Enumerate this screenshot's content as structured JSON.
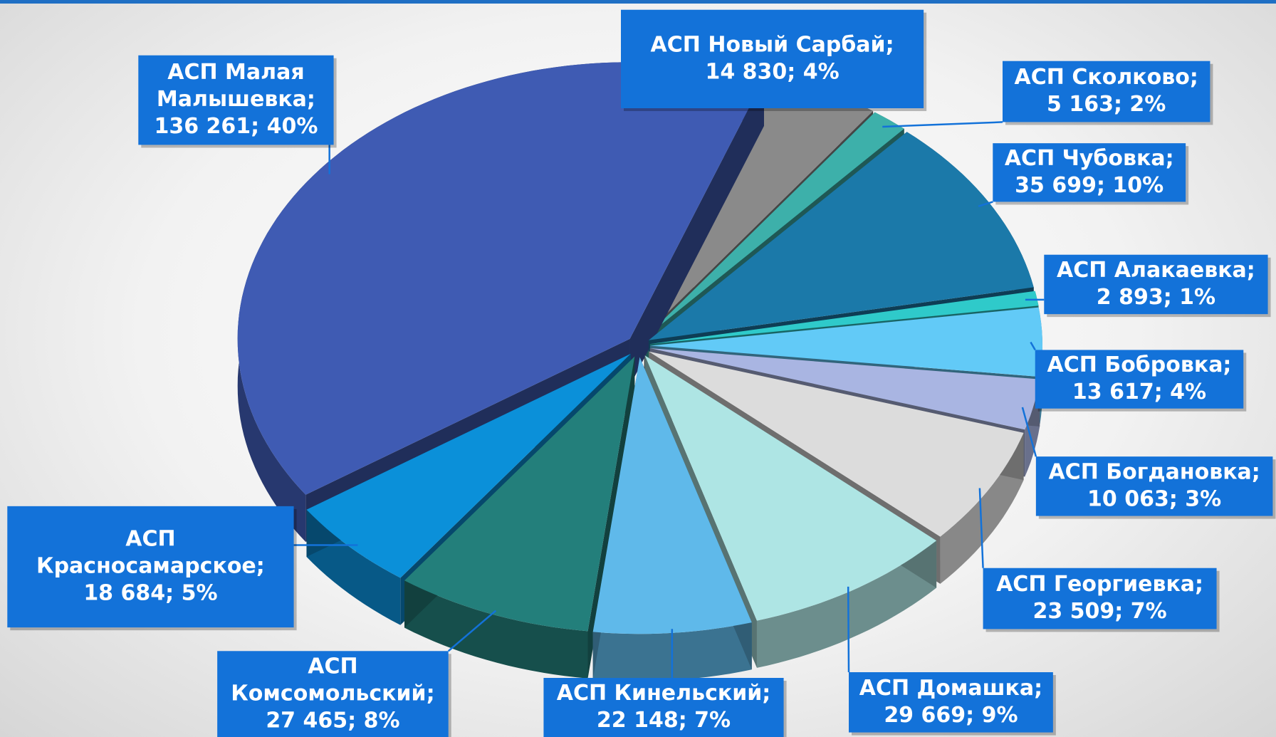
{
  "chart_data": {
    "type": "pie3d",
    "categories": [
      "АСП Новый Сарбай",
      "АСП Сколково",
      "АСП Чубовка",
      "АСП Алакаевка",
      "АСП Бобровка",
      "АСП Богдановка",
      "АСП Георгиевка",
      "АСП Домашка",
      "АСП Кинельский",
      "АСП Комсомольский",
      "АСП Красносамарское",
      "АСП Малая Малышевка"
    ],
    "values": [
      14830,
      5163,
      35699,
      2893,
      13617,
      10063,
      23509,
      29669,
      22148,
      27465,
      18684,
      136261
    ],
    "value_labels": [
      [
        "АСП Новый Сарбай;",
        "14 830; 4%"
      ],
      [
        "АСП Сколково;",
        "5 163; 2%"
      ],
      [
        "АСП Чубовка;",
        "35 699; 10%"
      ],
      [
        "АСП Алакаевка;",
        "2 893; 1%"
      ],
      [
        "АСП Бобровка;",
        "13 617; 4%"
      ],
      [
        "АСП Богдановка;",
        "10 063; 3%"
      ],
      [
        "АСП Георгиевка;",
        "23 509; 7%"
      ],
      [
        "АСП Домашка;",
        "29 669; 9%"
      ],
      [
        "АСП Кинельский;",
        "22 148; 7%"
      ],
      [
        "АСП",
        "Комсомольский;",
        "27 465; 8%"
      ],
      [
        "АСП",
        "Красносамарское;",
        "18 684; 5%"
      ],
      [
        "АСП Малая",
        "Малышевка;",
        "136 261; 40%"
      ]
    ],
    "colors": [
      "#8a8a8a",
      "#3db0aa",
      "#1b79a9",
      "#2fcaca",
      "#62caf7",
      "#a9b5e2",
      "#dcdcdc",
      "#aee5e4",
      "#5fb9ea",
      "#237f7b",
      "#0b90d9",
      "#3f5bb3"
    ]
  }
}
